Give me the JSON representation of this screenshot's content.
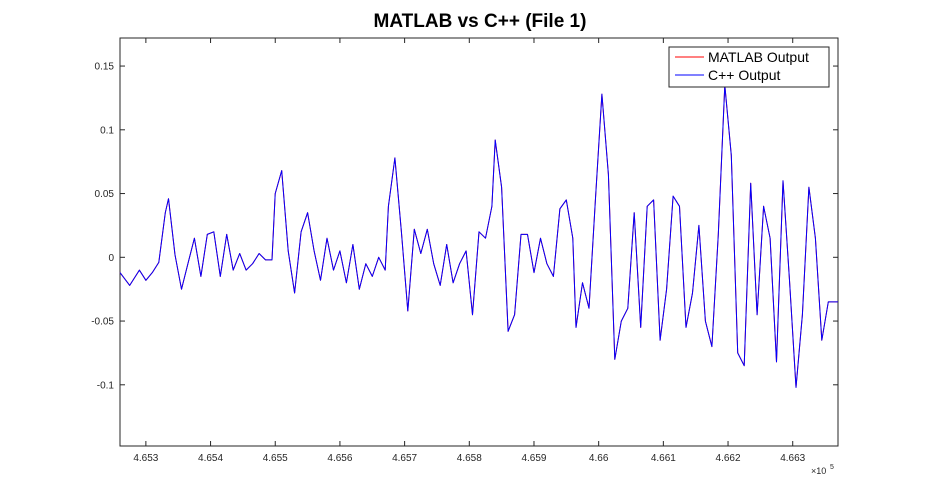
{
  "chart_data": {
    "type": "line",
    "title": "MATLAB vs C++ (File 1)",
    "xlabel": "",
    "ylabel": "",
    "x_exponent_label": "×10",
    "x_exponent_power": "5",
    "xlim": [
      465260,
      466370
    ],
    "ylim": [
      -0.148,
      0.172
    ],
    "xticks": [
      465300,
      465400,
      465500,
      465600,
      465700,
      465800,
      465900,
      466000,
      466100,
      466200,
      466300
    ],
    "xtick_labels": [
      "4.653",
      "4.654",
      "4.655",
      "4.656",
      "4.657",
      "4.658",
      "4.659",
      "4.66",
      "4.661",
      "4.662",
      "4.663"
    ],
    "yticks": [
      0.15,
      0.1,
      0.05,
      0,
      -0.05,
      -0.1
    ],
    "ytick_labels": [
      "0.15",
      "0.1",
      "0.05",
      "0",
      "-0.05",
      "-0.1"
    ],
    "grid": false,
    "legend_position": "top-right",
    "series": [
      {
        "name": "MATLAB Output",
        "color": "#ff0000",
        "x": [
          465260,
          465275,
          465290,
          465300,
          465310,
          465320,
          465330,
          465335,
          465345,
          465355,
          465365,
          465375,
          465385,
          465395,
          465405,
          465415,
          465425,
          465435,
          465445,
          465455,
          465465,
          465475,
          465485,
          465495,
          465500,
          465510,
          465520,
          465530,
          465540,
          465550,
          465560,
          465570,
          465580,
          465590,
          465600,
          465610,
          465620,
          465630,
          465640,
          465650,
          465660,
          465670,
          465675,
          465685,
          465695,
          465705,
          465715,
          465725,
          465735,
          465745,
          465755,
          465765,
          465775,
          465785,
          465795,
          465805,
          465815,
          465825,
          465835,
          465840,
          465850,
          465860,
          465870,
          465880,
          465890,
          465900,
          465910,
          465920,
          465930,
          465940,
          465950,
          465960,
          465965,
          465975,
          465985,
          465995,
          466005,
          466015,
          466025,
          466035,
          466045,
          466055,
          466065,
          466075,
          466085,
          466095,
          466105,
          466115,
          466125,
          466135,
          466145,
          466155,
          466165,
          466175,
          466185,
          466195,
          466205,
          466215,
          466225,
          466235,
          466245,
          466255,
          466265,
          466275,
          466285,
          466295,
          466305,
          466315,
          466325,
          466335,
          466345,
          466355,
          466370
        ],
        "y": [
          -0.012,
          -0.022,
          -0.01,
          -0.018,
          -0.012,
          -0.004,
          0.035,
          0.046,
          0.002,
          -0.025,
          -0.005,
          0.015,
          -0.015,
          0.018,
          0.02,
          -0.015,
          0.018,
          -0.01,
          0.003,
          -0.01,
          -0.005,
          0.003,
          -0.002,
          -0.002,
          0.05,
          0.068,
          0.005,
          -0.028,
          0.02,
          0.035,
          0.005,
          -0.018,
          0.015,
          -0.01,
          0.005,
          -0.02,
          0.01,
          -0.025,
          -0.005,
          -0.015,
          0.0,
          -0.01,
          0.04,
          0.078,
          0.02,
          -0.042,
          0.022,
          0.003,
          0.022,
          -0.005,
          -0.022,
          0.01,
          -0.02,
          -0.005,
          0.005,
          -0.045,
          0.02,
          0.015,
          0.04,
          0.092,
          0.055,
          -0.058,
          -0.045,
          0.018,
          0.018,
          -0.012,
          0.015,
          -0.005,
          -0.015,
          0.038,
          0.045,
          0.015,
          -0.055,
          -0.02,
          -0.04,
          0.045,
          0.128,
          0.065,
          -0.08,
          -0.05,
          -0.04,
          0.035,
          -0.055,
          0.04,
          0.045,
          -0.065,
          -0.025,
          0.048,
          0.04,
          -0.055,
          -0.028,
          0.025,
          -0.05,
          -0.07,
          0.018,
          0.135,
          0.08,
          -0.075,
          -0.085,
          0.058,
          -0.045,
          0.04,
          0.015,
          -0.082,
          0.06,
          -0.018,
          -0.102,
          -0.045,
          0.055,
          0.015,
          -0.065,
          -0.035,
          -0.035
        ]
      },
      {
        "name": "C++ Output",
        "color": "#0000ff",
        "x": [
          465260,
          465275,
          465290,
          465300,
          465310,
          465320,
          465330,
          465335,
          465345,
          465355,
          465365,
          465375,
          465385,
          465395,
          465405,
          465415,
          465425,
          465435,
          465445,
          465455,
          465465,
          465475,
          465485,
          465495,
          465500,
          465510,
          465520,
          465530,
          465540,
          465550,
          465560,
          465570,
          465580,
          465590,
          465600,
          465610,
          465620,
          465630,
          465640,
          465650,
          465660,
          465670,
          465675,
          465685,
          465695,
          465705,
          465715,
          465725,
          465735,
          465745,
          465755,
          465765,
          465775,
          465785,
          465795,
          465805,
          465815,
          465825,
          465835,
          465840,
          465850,
          465860,
          465870,
          465880,
          465890,
          465900,
          465910,
          465920,
          465930,
          465940,
          465950,
          465960,
          465965,
          465975,
          465985,
          465995,
          466005,
          466015,
          466025,
          466035,
          466045,
          466055,
          466065,
          466075,
          466085,
          466095,
          466105,
          466115,
          466125,
          466135,
          466145,
          466155,
          466165,
          466175,
          466185,
          466195,
          466205,
          466215,
          466225,
          466235,
          466245,
          466255,
          466265,
          466275,
          466285,
          466295,
          466305,
          466315,
          466325,
          466335,
          466345,
          466355,
          466370
        ],
        "y": [
          -0.012,
          -0.022,
          -0.01,
          -0.018,
          -0.012,
          -0.004,
          0.035,
          0.046,
          0.002,
          -0.025,
          -0.005,
          0.015,
          -0.015,
          0.018,
          0.02,
          -0.015,
          0.018,
          -0.01,
          0.003,
          -0.01,
          -0.005,
          0.003,
          -0.002,
          -0.002,
          0.05,
          0.068,
          0.005,
          -0.028,
          0.02,
          0.035,
          0.005,
          -0.018,
          0.015,
          -0.01,
          0.005,
          -0.02,
          0.01,
          -0.025,
          -0.005,
          -0.015,
          0.0,
          -0.01,
          0.04,
          0.078,
          0.02,
          -0.042,
          0.022,
          0.003,
          0.022,
          -0.005,
          -0.022,
          0.01,
          -0.02,
          -0.005,
          0.005,
          -0.045,
          0.02,
          0.015,
          0.04,
          0.092,
          0.055,
          -0.058,
          -0.045,
          0.018,
          0.018,
          -0.012,
          0.015,
          -0.005,
          -0.015,
          0.038,
          0.045,
          0.015,
          -0.055,
          -0.02,
          -0.04,
          0.045,
          0.128,
          0.065,
          -0.08,
          -0.05,
          -0.04,
          0.035,
          -0.055,
          0.04,
          0.045,
          -0.065,
          -0.025,
          0.048,
          0.04,
          -0.055,
          -0.028,
          0.025,
          -0.05,
          -0.07,
          0.018,
          0.135,
          0.08,
          -0.075,
          -0.085,
          0.058,
          -0.045,
          0.04,
          0.015,
          -0.082,
          0.06,
          -0.018,
          -0.102,
          -0.045,
          0.055,
          0.015,
          -0.065,
          -0.035,
          -0.035
        ]
      }
    ]
  }
}
